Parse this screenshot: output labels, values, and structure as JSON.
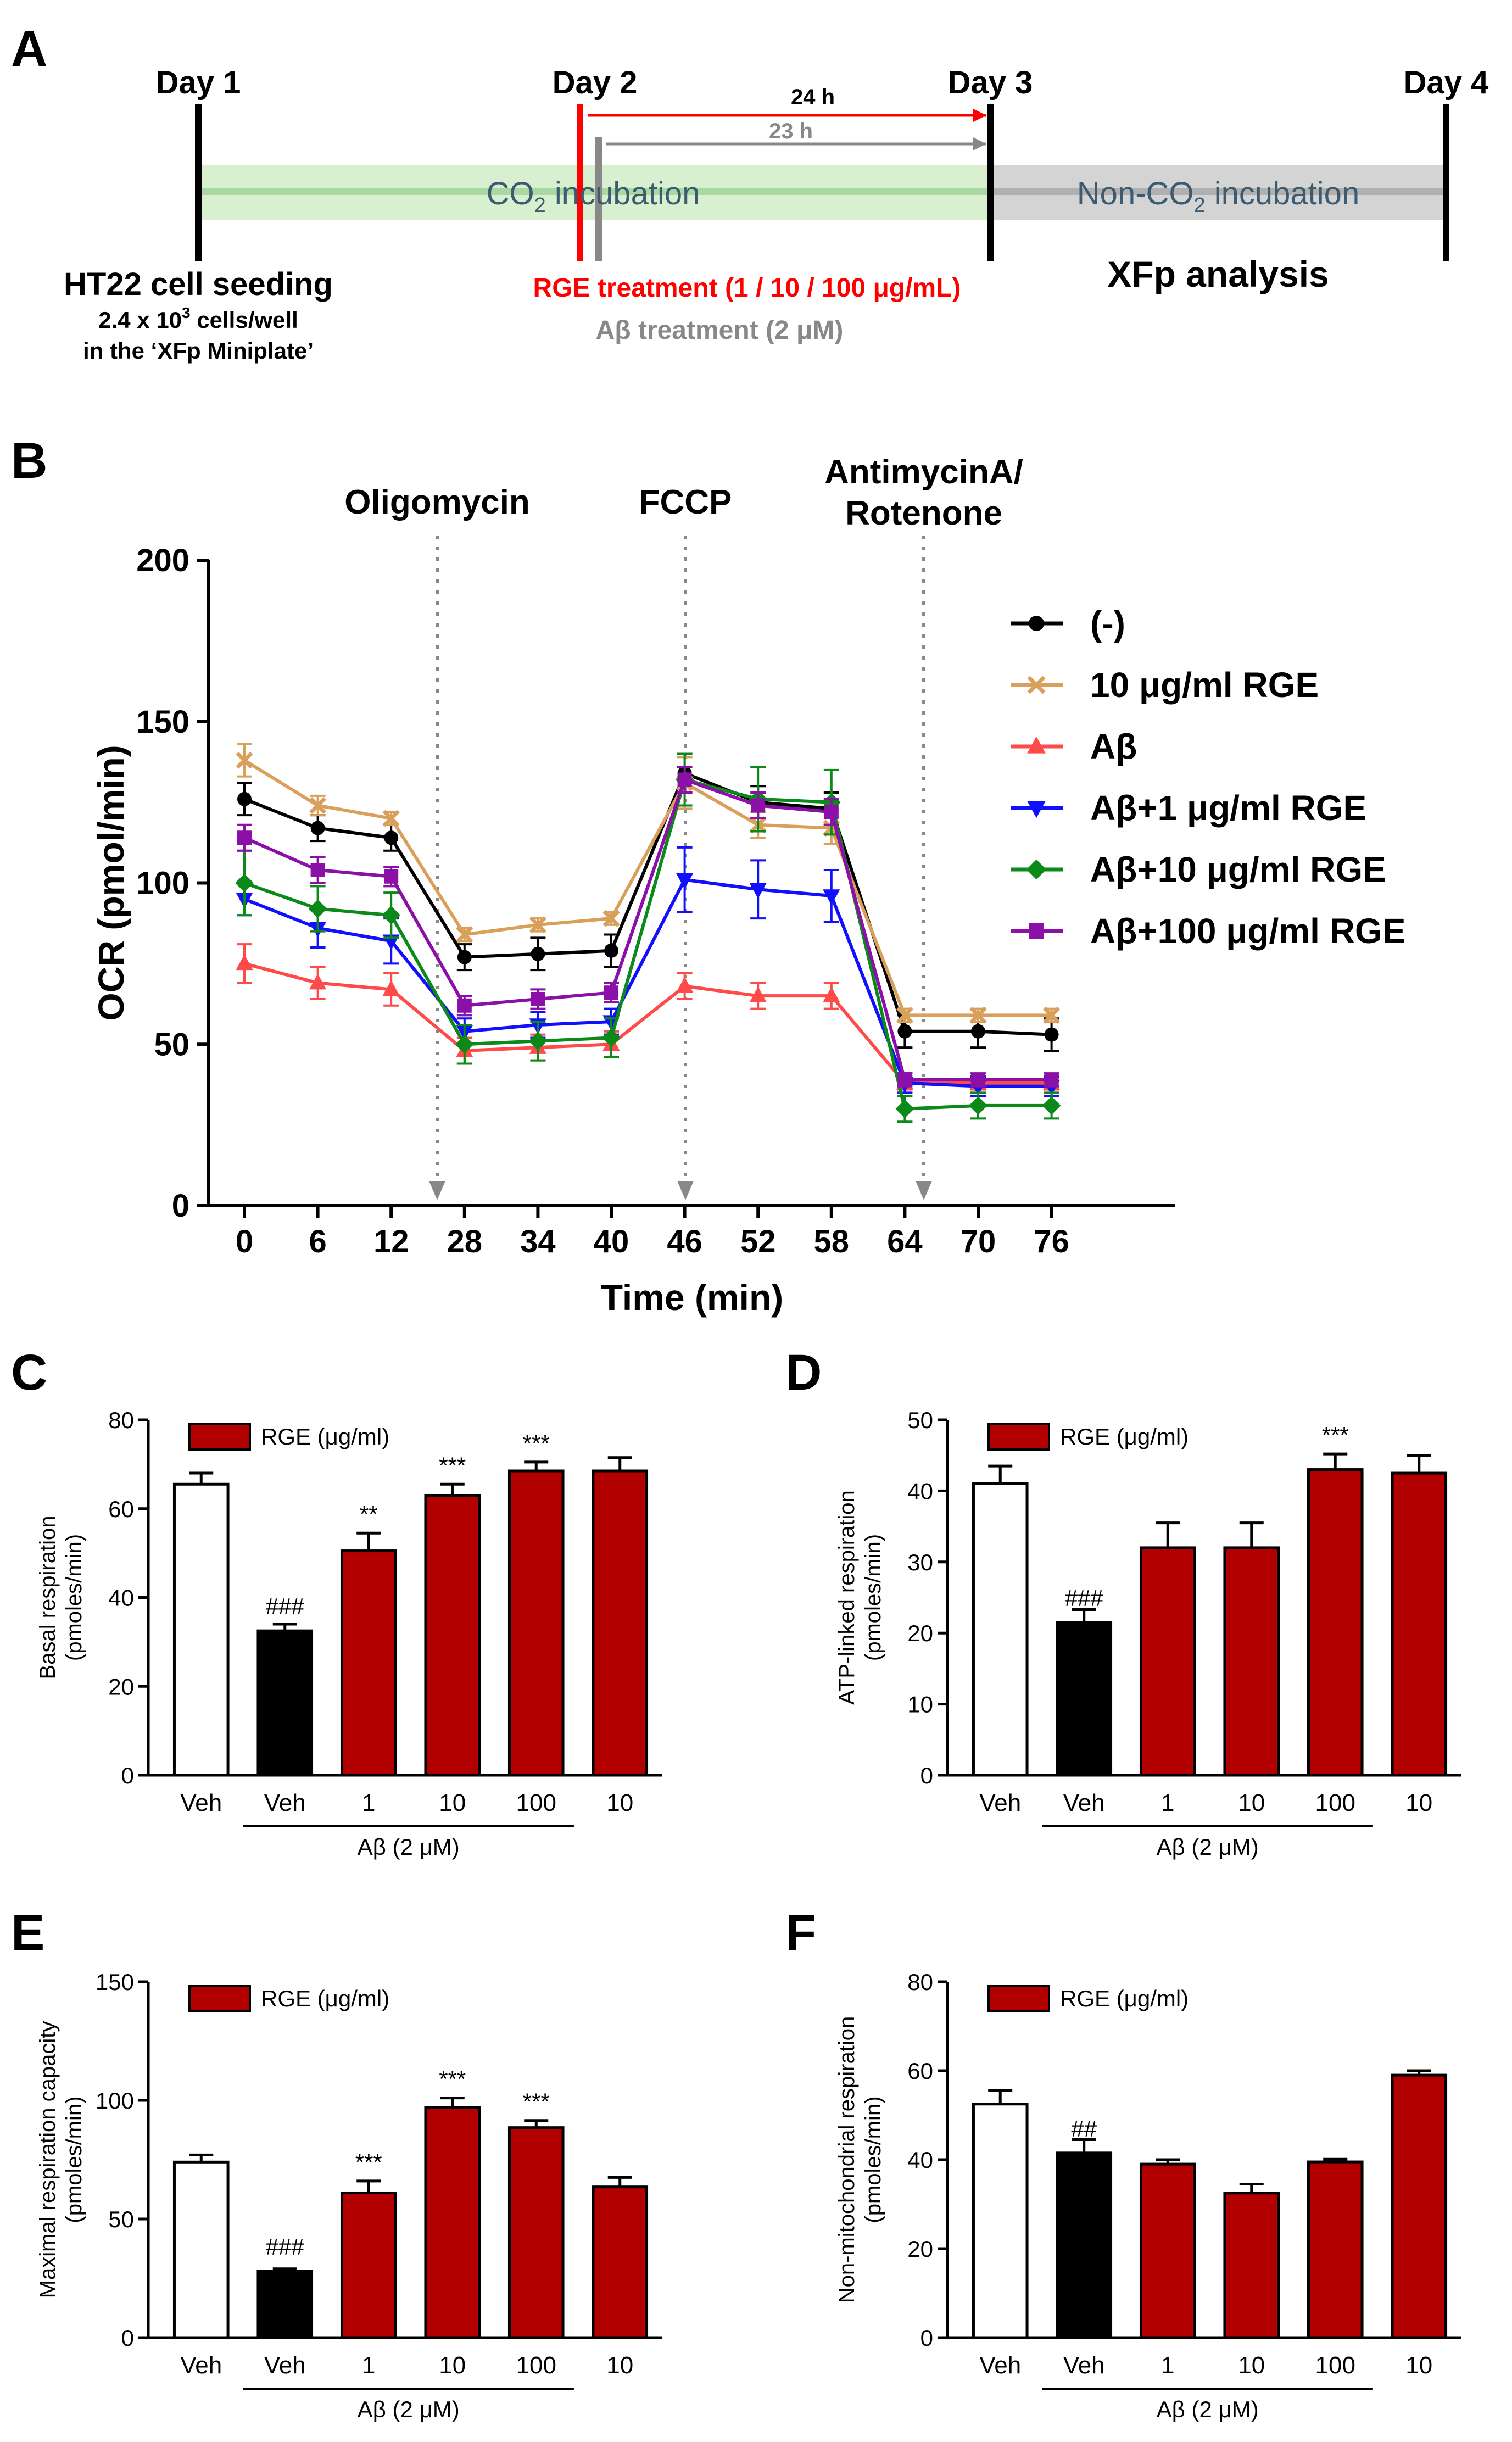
{
  "colors": {
    "black": "#000000",
    "red": "#ff0000",
    "gray": "#888888",
    "tan": "#d9a05b",
    "salmon": "#ff4a4a",
    "blue": "#1010ff",
    "green": "#0b8a1a",
    "purple": "#8b10a8",
    "darkred": "#b20000",
    "green_band": "#d9f0d0",
    "green_line": "#a9d8a2",
    "gray_band": "#d4d4d4",
    "gray_line": "#b0b0b0",
    "band_text": "#3d5b70"
  },
  "panel_a": {
    "letter": "A",
    "day1": "Day 1",
    "day2": "Day 2",
    "day3": "Day 3",
    "day4": "Day 4",
    "co2_pre": "CO",
    "co2_sub": "2",
    "co2_post": " incubation",
    "nonco2_pre": "Non-CO",
    "nonco2_sub": "2",
    "nonco2_post": " incubation",
    "h24": "24 h",
    "h23": "23 h",
    "seeding": "HT22 cell seeding",
    "density_pre": "2.4 x 10",
    "density_sup": "3",
    "density_post": " cells/well",
    "miniplate": "in the ‘XFp Miniplate’",
    "rge_treatment": "RGE treatment (1 / 10 / 100 μg/mL)",
    "abeta_treatment": "Aβ treatment (2 μM)",
    "xfp": "XFp analysis"
  },
  "chart_data": [
    {
      "panel": "B",
      "type": "line",
      "xlabel": "Time  (min)",
      "ylabel": "OCR (pmol/min)",
      "x": [
        0,
        6,
        12,
        28,
        34,
        40,
        46,
        52,
        58,
        64,
        70,
        76
      ],
      "ylim": [
        0,
        200
      ],
      "yticks": [
        0,
        50,
        100,
        150,
        200
      ],
      "injections": [
        {
          "label_lines": [
            "Oligomycin"
          ],
          "after_index": 2
        },
        {
          "label_lines": [
            "FCCP"
          ],
          "after_index": 5
        },
        {
          "label_lines": [
            "AntimycinA/",
            "Rotenone"
          ],
          "after_index": 8
        }
      ],
      "series": [
        {
          "name": "(-)",
          "marker": "circle",
          "color": "#000000",
          "values": [
            126,
            117,
            114,
            77,
            78,
            79,
            134,
            125,
            123,
            54,
            54,
            53
          ],
          "errors": [
            5,
            4,
            4,
            4,
            5,
            5,
            6,
            5,
            5,
            5,
            5,
            5
          ]
        },
        {
          "name": "10 μg/ml RGE",
          "marker": "x",
          "color": "#d9a05b",
          "values": [
            138,
            124,
            120,
            84,
            87,
            89,
            131,
            118,
            117,
            59,
            59,
            59
          ],
          "errors": [
            5,
            3,
            2,
            2,
            2,
            2,
            8,
            4,
            5,
            2,
            2,
            2
          ]
        },
        {
          "name": "Aβ",
          "marker": "triangle-up",
          "color": "#ff4a4a",
          "values": [
            75,
            69,
            67,
            48,
            49,
            50,
            68,
            65,
            65,
            38,
            38,
            38
          ],
          "errors": [
            6,
            5,
            5,
            4,
            4,
            4,
            4,
            4,
            4,
            2,
            2,
            2
          ]
        },
        {
          "name": "Aβ+1 μg/ml RGE",
          "marker": "triangle-down",
          "color": "#1010ff",
          "values": [
            95,
            86,
            82,
            54,
            56,
            57,
            101,
            98,
            96,
            38,
            37,
            37
          ],
          "errors": [
            5,
            6,
            7,
            4,
            4,
            4,
            10,
            9,
            8,
            3,
            3,
            3
          ]
        },
        {
          "name": "Aβ+10 μg/ml RGE",
          "marker": "diamond",
          "color": "#0b8a1a",
          "values": [
            100,
            92,
            90,
            50,
            51,
            52,
            132,
            126,
            125,
            30,
            31,
            31
          ],
          "errors": [
            10,
            7,
            7,
            6,
            6,
            6,
            8,
            10,
            10,
            4,
            4,
            4
          ]
        },
        {
          "name": "Aβ+100 μg/ml RGE",
          "marker": "square",
          "color": "#8b10a8",
          "values": [
            114,
            104,
            102,
            62,
            64,
            66,
            132,
            124,
            122,
            39,
            39,
            39
          ],
          "errors": [
            4,
            4,
            3,
            3,
            3,
            3,
            4,
            4,
            4,
            2,
            2,
            2
          ]
        }
      ]
    },
    {
      "panel": "C",
      "type": "bar",
      "ylabel": [
        "Basal respiration",
        "(pmoles/min)"
      ],
      "ylim": [
        0,
        80
      ],
      "yticks": [
        0,
        20,
        40,
        60,
        80
      ],
      "categories": [
        "Veh",
        "Veh",
        "1",
        "10",
        "100",
        "10"
      ],
      "values": [
        65.5,
        32.5,
        50.5,
        63,
        68.5,
        68.5
      ],
      "errors": [
        2.5,
        1.5,
        4,
        2.5,
        2,
        3
      ],
      "annotations": [
        "",
        "###",
        "**",
        "***",
        "***",
        ""
      ],
      "legend": "RGE (μg/ml)",
      "group_label": "Aβ (2 μM)"
    },
    {
      "panel": "D",
      "type": "bar",
      "ylabel": [
        "ATP-linked respiration",
        "(pmoles/min)"
      ],
      "ylim": [
        0,
        50
      ],
      "yticks": [
        0,
        10,
        20,
        30,
        40,
        50
      ],
      "categories": [
        "Veh",
        "Veh",
        "1",
        "10",
        "100",
        "10"
      ],
      "values": [
        41,
        21.5,
        32,
        32,
        43,
        42.5
      ],
      "errors": [
        2.5,
        1.8,
        3.5,
        3.5,
        2.2,
        2.5
      ],
      "annotations": [
        "",
        "###",
        "",
        "",
        "***",
        ""
      ],
      "legend": "RGE (μg/ml)",
      "group_label": "Aβ (2 μM)"
    },
    {
      "panel": "E",
      "type": "bar",
      "ylabel": [
        "Maximal respiration capacity",
        "(pmoles/min)"
      ],
      "ylim": [
        0,
        150
      ],
      "yticks": [
        0,
        50,
        100,
        150
      ],
      "categories": [
        "Veh",
        "Veh",
        "1",
        "10",
        "100",
        "10"
      ],
      "values": [
        74,
        28,
        61,
        97,
        88.5,
        63.5
      ],
      "errors": [
        3,
        1,
        5,
        4,
        3,
        4
      ],
      "annotations": [
        "",
        "###",
        "***",
        "***",
        "***",
        ""
      ],
      "legend": "RGE (μg/ml)",
      "group_label": "Aβ (2 μM)"
    },
    {
      "panel": "F",
      "type": "bar",
      "ylabel": [
        "Non-mitochondrial respiration",
        "(pmoles/min)"
      ],
      "ylim": [
        0,
        80
      ],
      "yticks": [
        0,
        20,
        40,
        60,
        80
      ],
      "categories": [
        "Veh",
        "Veh",
        "1",
        "10",
        "100",
        "10"
      ],
      "values": [
        52.5,
        41.5,
        39,
        32.5,
        39.5,
        59
      ],
      "errors": [
        3,
        3,
        1,
        2,
        0.6,
        1
      ],
      "annotations": [
        "",
        "##",
        "",
        "",
        "",
        ""
      ],
      "legend": "RGE (μg/ml)",
      "group_label": "Aβ (2 μM)"
    }
  ]
}
